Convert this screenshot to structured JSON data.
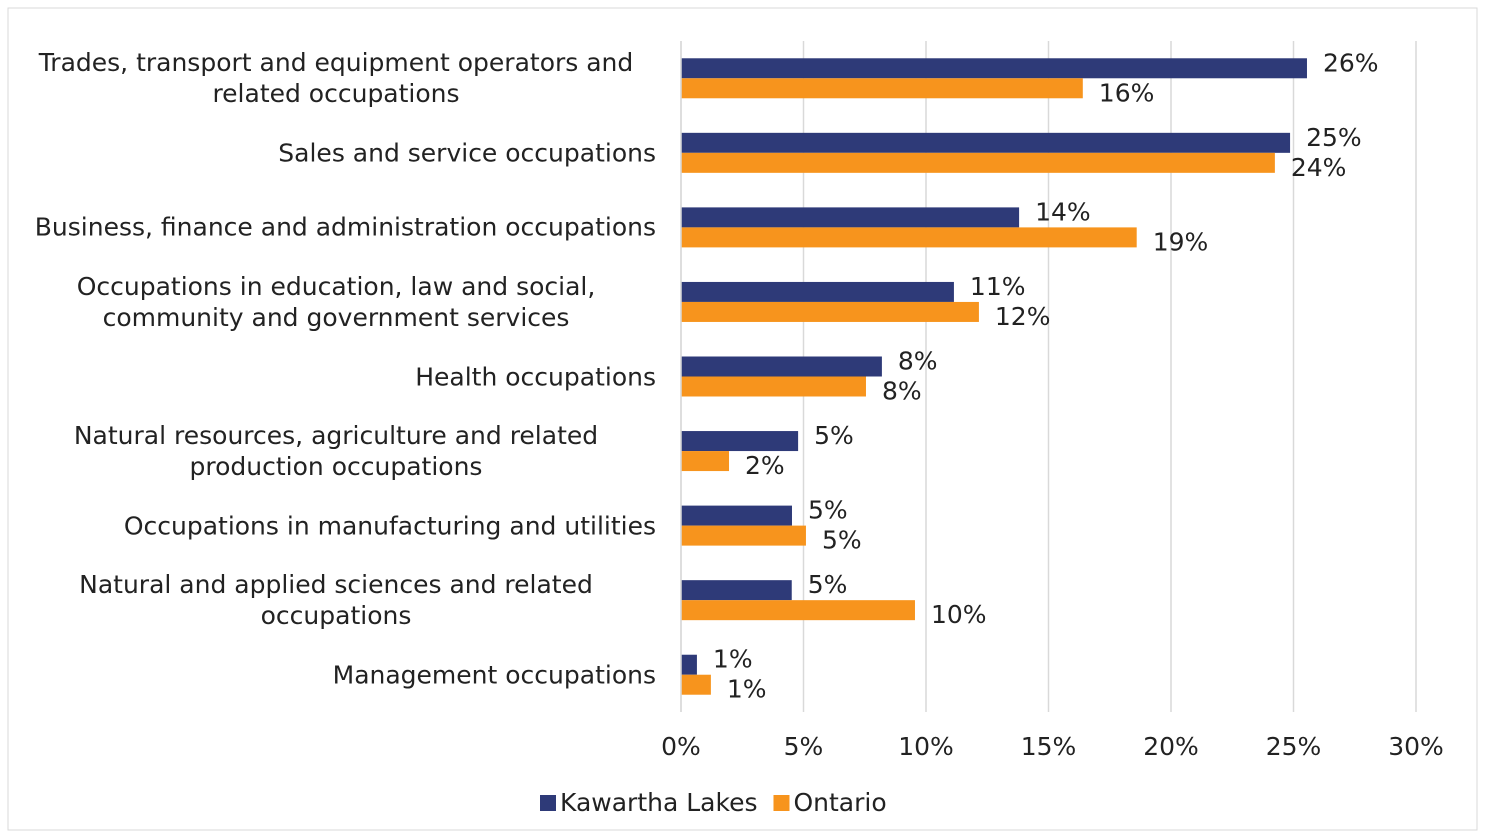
{
  "chart_data": {
    "type": "bar",
    "orientation": "horizontal",
    "categories": [
      "Trades, transport and equipment operators and related occupations",
      "Sales and service occupations",
      "Business, finance and administration occupations",
      "Occupations in education, law and social, community and government services",
      "Health occupations",
      "Natural resources, agriculture and related production occupations",
      "Occupations in manufacturing and utilities",
      "Natural and applied sciences and related occupations",
      "Management occupations"
    ],
    "series": [
      {
        "name": "Kawartha Lakes",
        "color": "#2e3a78",
        "values": [
          25.55,
          24.86,
          13.8,
          11.14,
          8.2,
          4.78,
          4.53,
          4.52,
          0.65
        ],
        "value_labels": [
          "26%",
          "25%",
          "14%",
          "11%",
          "8%",
          "5%",
          "5%",
          "5%",
          "1%"
        ]
      },
      {
        "name": "Ontario",
        "color": "#f7941d",
        "values": [
          16.4,
          24.24,
          18.6,
          12.16,
          7.55,
          1.96,
          5.1,
          9.55,
          1.22
        ],
        "value_labels": [
          "16%",
          "24%",
          "19%",
          "12%",
          "8%",
          "2%",
          "5%",
          "10%",
          "1%"
        ]
      }
    ],
    "xlim": [
      0,
      30
    ],
    "xticks": [
      {
        "value": 0,
        "label": "0%"
      },
      {
        "value": 5,
        "label": "5%"
      },
      {
        "value": 10,
        "label": "10%"
      },
      {
        "value": 15,
        "label": "15%"
      },
      {
        "value": 20,
        "label": "20%"
      },
      {
        "value": 25,
        "label": "25%"
      },
      {
        "value": 30,
        "label": "30%"
      }
    ],
    "grid": true,
    "legend": "bottom"
  }
}
